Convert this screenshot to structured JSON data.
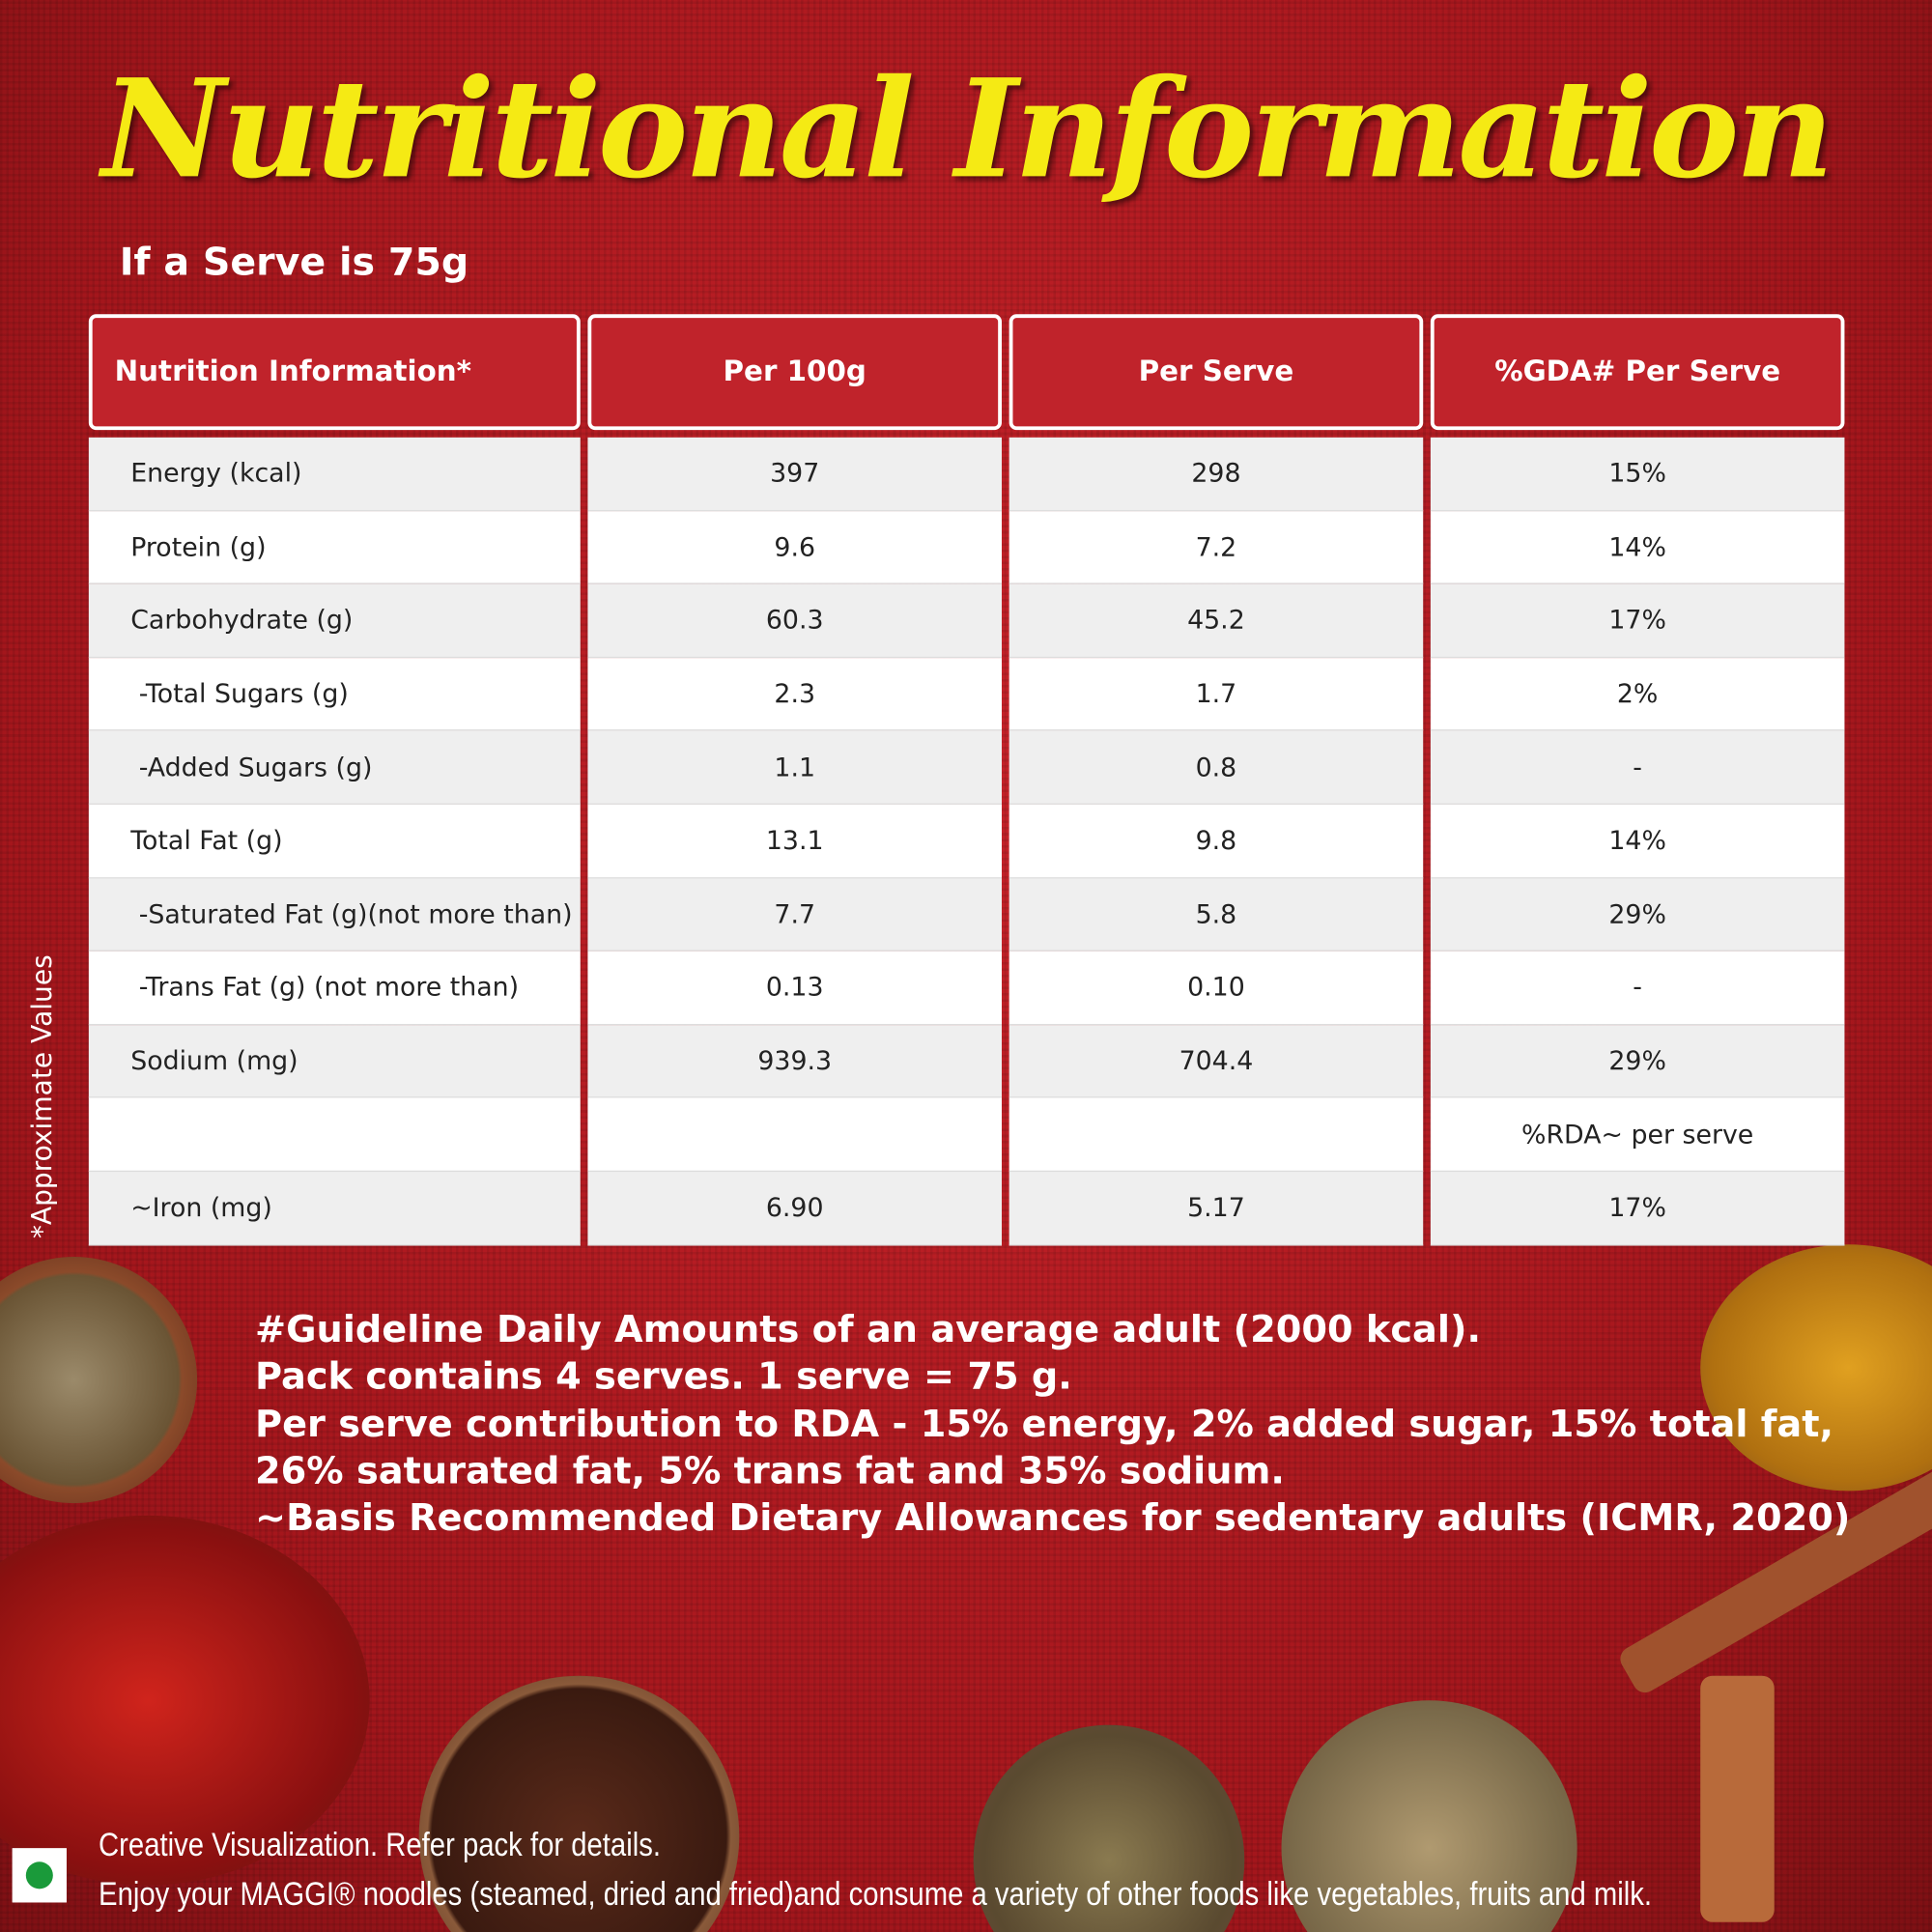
{
  "title": "Nutritional Information",
  "serve_note": "If a Serve is 75g",
  "table": {
    "headers": [
      "Nutrition Information*",
      "Per 100g",
      "Per Serve",
      "%GDA# Per Serve"
    ],
    "rows": [
      [
        "Energy (kcal)",
        "397",
        "298",
        "15%"
      ],
      [
        "Protein (g)",
        "9.6",
        "7.2",
        "14%"
      ],
      [
        "Carbohydrate (g)",
        "60.3",
        "45.2",
        "17%"
      ],
      [
        " -Total Sugars (g)",
        "2.3",
        "1.7",
        "2%"
      ],
      [
        " -Added Sugars (g)",
        "1.1",
        "0.8",
        "-"
      ],
      [
        "Total Fat (g)",
        "13.1",
        "9.8",
        "14%"
      ],
      [
        " -Saturated Fat (g)(not more than)",
        "7.7",
        "5.8",
        "29%"
      ],
      [
        " -Trans Fat (g) (not more than)",
        "0.13",
        "0.10",
        "-"
      ],
      [
        "Sodium (mg)",
        "939.3",
        "704.4",
        "29%"
      ]
    ],
    "rda_heading": "%RDA~ per serve",
    "iron_row": [
      "~Iron (mg)",
      "6.90",
      "5.17",
      "17%"
    ]
  },
  "side_note": "*Approximate Values",
  "footnotes": [
    "#Guideline Daily Amounts of an average adult  (2000 kcal).",
    "Pack contains 4 serves. 1 serve = 75 g.",
    "Per serve contribution to RDA - 15% energy, 2% added sugar, 15% total fat,",
    "26% saturated fat, 5% trans fat and 35% sodium.",
    "~Basis Recommended Dietary Allowances for sedentary adults (ICMR, 2020)"
  ],
  "footer": [
    "Creative Visualization. Refer pack for details.",
    "Enjoy your MAGGI® noodles (steamed, dried and fried)and consume a variety of other foods like vegetables, fruits and milk."
  ]
}
